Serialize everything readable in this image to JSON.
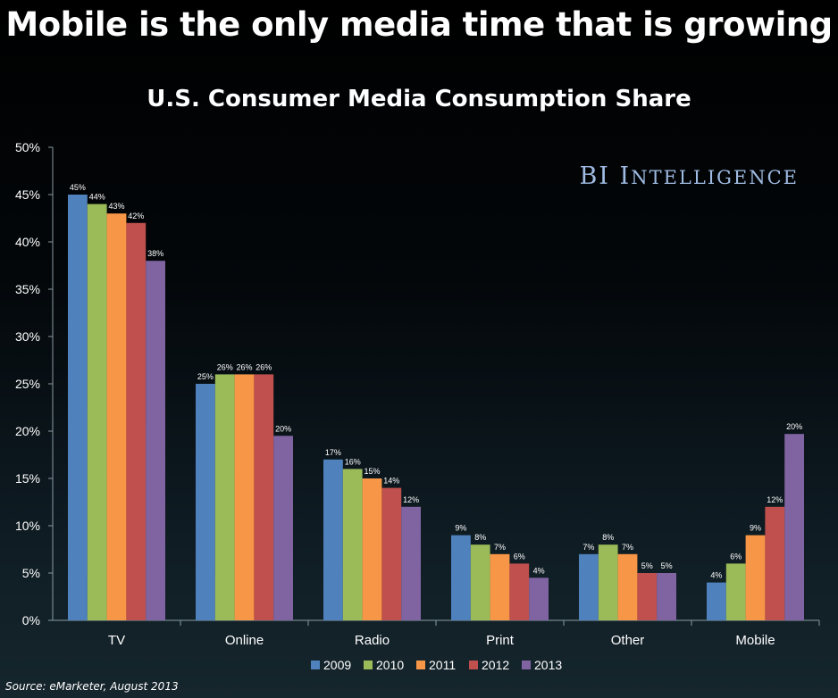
{
  "headline": "Mobile is the only media time that is growing",
  "brand": "BI Intelligence",
  "source": "Source: eMarketer, August 2013",
  "chart_data": {
    "type": "bar",
    "title": "U.S. Consumer Media Consumption Share",
    "xlabel": "",
    "ylabel": "",
    "ylim": [
      0,
      50
    ],
    "y_ticks": [
      "0%",
      "5%",
      "10%",
      "15%",
      "20%",
      "25%",
      "30%",
      "35%",
      "40%",
      "45%",
      "50%"
    ],
    "grid": false,
    "legend_position": "bottom",
    "categories": [
      "TV",
      "Online",
      "Radio",
      "Print",
      "Other",
      "Mobile"
    ],
    "series": [
      {
        "name": "2009",
        "color": "#4f81bd",
        "values": [
          45,
          25,
          17,
          9,
          7,
          4
        ],
        "labels": [
          "45%",
          "25%",
          "17%",
          "9%",
          "7%",
          "4%"
        ]
      },
      {
        "name": "2010",
        "color": "#9bbb59",
        "values": [
          44,
          26,
          16,
          8,
          8,
          6
        ],
        "labels": [
          "44%",
          "26%",
          "16%",
          "8%",
          "8%",
          "6%"
        ]
      },
      {
        "name": "2011",
        "color": "#f79646",
        "values": [
          43,
          26,
          15,
          7,
          7,
          9
        ],
        "labels": [
          "43%",
          "26%",
          "15%",
          "7%",
          "7%",
          "9%"
        ]
      },
      {
        "name": "2012",
        "color": "#c0504d",
        "values": [
          42,
          26,
          14,
          6,
          5,
          12
        ],
        "labels": [
          "42%",
          "26%",
          "14%",
          "6%",
          "5%",
          "12%"
        ]
      },
      {
        "name": "2013",
        "color": "#8064a2",
        "values": [
          38,
          19.5,
          12,
          4.5,
          5,
          19.7
        ],
        "labels": [
          "38%",
          "20%",
          "12%",
          "4%",
          "5%",
          "20%"
        ]
      }
    ]
  }
}
